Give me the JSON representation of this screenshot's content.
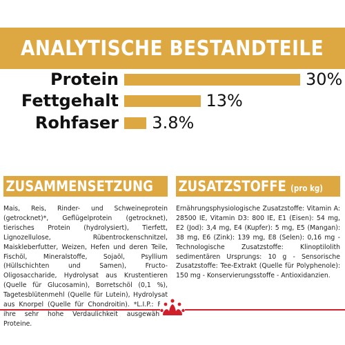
{
  "header": {
    "title": "ANALYTISCHE BESTANDTEILE"
  },
  "chart_data": {
    "type": "bar",
    "categories": [
      "Protein",
      "Fettgehalt",
      "Rohfaser"
    ],
    "values": [
      30,
      13,
      3.8
    ],
    "value_labels": [
      "30%",
      "13%",
      "3.8%"
    ],
    "unit": "%"
  },
  "composition": {
    "title": "ZUSAMMENSETZUNG",
    "text": "Mais, Reis, Rinder- und Schweineprotein (getrocknet)*, Geflügelprotein (getrocknet), tierisches Protein (hydrolysiert), Tierfett, Lignozellulose, Rübentrockenschnitzel, Maiskleberfutter, Weizen, Hefen und deren Teile, Fischöl, Mineralstoffe, Sojaöl, Psyllium (Hüllschichten und Samen), Fructo-Oligosaccharide, Hydrolysat aus Krustentieren (Quelle für Glucosamin), Borretschöl (0,1 %), Tagetesblütenmehl (Quelle für Lutein), Hydrolysat aus Knorpel (Quelle für Chondroitin). *L.I.P.: Für ihre sehr hohe Verdaulichkeit ausgewählte Proteine."
  },
  "additives": {
    "title": "ZUSATZSTOFFE",
    "subtitle": "(pro kg)",
    "text": "Ernährungsphysiologische Zusatzstoffe: Vitamin A: 28500 IE, Vitamin D3: 800 IE, E1 (Eisen): 54 mg, E2 (Jod): 3,4 mg, E4 (Kupfer): 5 mg, E5 (Mangan): 38 mg, E6 (Zink): 139 mg, E8 (Selen): 0,16 mg - Technologische Zusatzstoffe: Klinoptilolith sedimentären Ursprungs: 10 g - Sensorische Zusatzstoffe: Tee-Extrakt (Quelle für Polyphenole): 150 mg - Konservierungsstoffe - Antioxidanzien."
  },
  "colors": {
    "accent": "#dda841",
    "footer_line": "#cf1f2b",
    "logo": "#cf1f2b"
  },
  "footer": {
    "logo_icon": "crown-icon"
  }
}
